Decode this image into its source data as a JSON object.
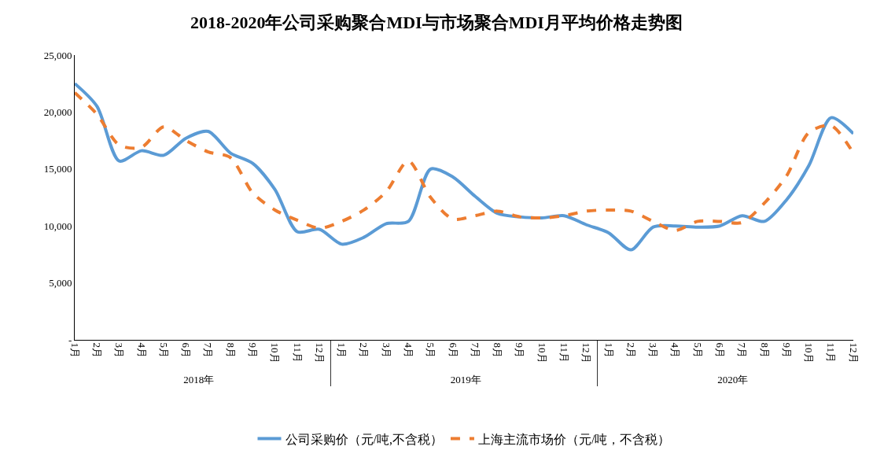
{
  "chart_data": {
    "type": "line",
    "title": "2018-2020年公司采购聚合MDI与市场聚合MDI月平均价格走势图",
    "categories": [
      "1月",
      "2月",
      "3月",
      "4月",
      "5月",
      "6月",
      "7月",
      "8月",
      "9月",
      "10月",
      "11月",
      "12月",
      "1月",
      "2月",
      "3月",
      "4月",
      "5月",
      "6月",
      "7月",
      "8月",
      "9月",
      "10月",
      "11月",
      "12月",
      "1月",
      "2月",
      "3月",
      "4月",
      "5月",
      "6月",
      "7月",
      "8月",
      "9月",
      "10月",
      "11月",
      "12月"
    ],
    "annotations": [
      "2018年",
      "2019年",
      "2020年"
    ],
    "series": [
      {
        "name": "公司采购价（元/吨,不含税）",
        "color": "#5b9bd5",
        "line_style": "solid",
        "values": [
          22500,
          20500,
          15700,
          16600,
          16200,
          17700,
          18300,
          16400,
          15500,
          13200,
          9500,
          9700,
          8400,
          9000,
          10200,
          10400,
          15000,
          14300,
          12600,
          11100,
          10800,
          10700,
          10900,
          10100,
          9400,
          7900,
          9900,
          10000,
          9900,
          10000,
          10900,
          10400,
          12300,
          15300,
          19500,
          18100
        ]
      },
      {
        "name": "上海主流市场价（元/吨，不含税）",
        "color": "#ed7d31",
        "line_style": "dashed",
        "values": [
          21700,
          19800,
          17100,
          16900,
          18700,
          17500,
          16500,
          16000,
          12900,
          11400,
          10500,
          9800,
          10400,
          11400,
          13000,
          15700,
          12500,
          10600,
          10900,
          11300,
          10800,
          10700,
          10900,
          11300,
          11400,
          11300,
          10400,
          9600,
          10400,
          10400,
          10300,
          12000,
          14400,
          18200,
          18800,
          16400
        ]
      }
    ],
    "ylim": [
      0,
      25000
    ],
    "yticks": [
      {
        "value": 0,
        "label": "-"
      },
      {
        "value": 5000,
        "label": "5,000"
      },
      {
        "value": 10000,
        "label": "10,000"
      },
      {
        "value": 15000,
        "label": "15,000"
      },
      {
        "value": 20000,
        "label": "20,000"
      },
      {
        "value": 25000,
        "label": "25,000"
      }
    ],
    "grid": false,
    "legend": "bottom",
    "marker": "none"
  }
}
